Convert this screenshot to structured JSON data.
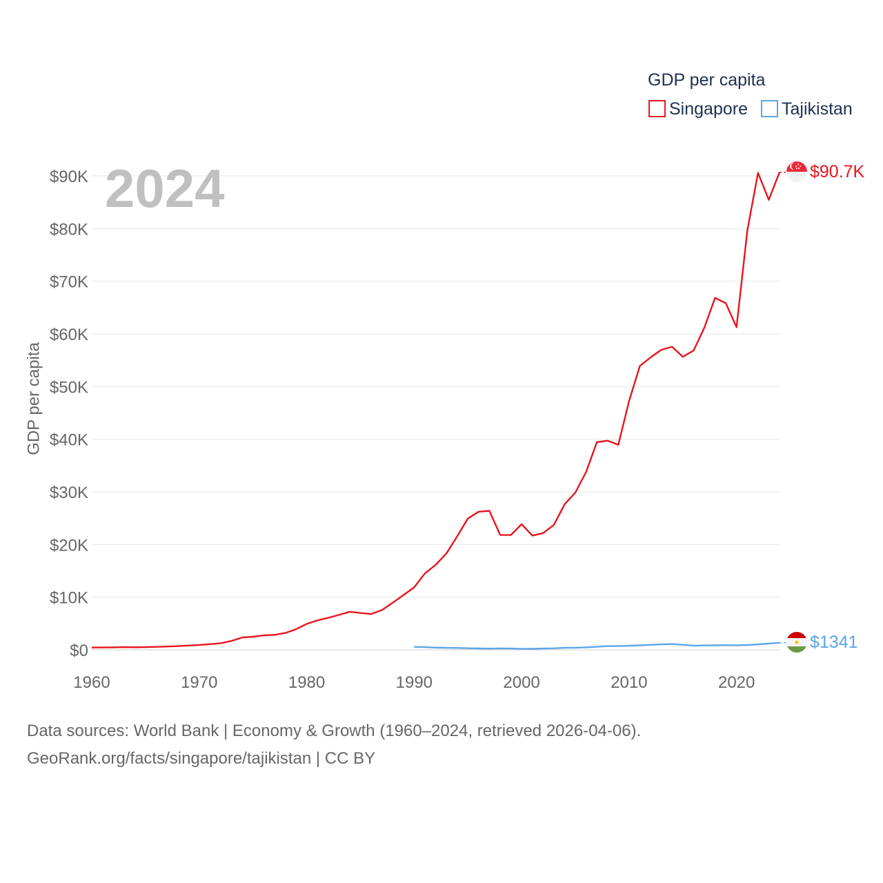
{
  "chart_data": {
    "type": "line",
    "title": "GDP per capita",
    "legend_title": "GDP per capita",
    "ylabel": "GDP per capita",
    "xlabel": "",
    "xlim": [
      1960,
      2024
    ],
    "ylim": [
      0,
      90000
    ],
    "x_ticks": [
      1960,
      1970,
      1980,
      1990,
      2000,
      2010,
      2020
    ],
    "x_tick_labels": [
      "1960",
      "1970",
      "1980",
      "1990",
      "2000",
      "2010",
      "2020"
    ],
    "y_ticks": [
      0,
      10000,
      20000,
      30000,
      40000,
      50000,
      60000,
      70000,
      80000,
      90000
    ],
    "y_tick_labels": [
      "$0",
      "$10K",
      "$20K",
      "$30K",
      "$40K",
      "$50K",
      "$60K",
      "$70K",
      "$80K",
      "$90K"
    ],
    "year_label": "2024",
    "grid": true,
    "legend_position": "top-right",
    "series": [
      {
        "name": "Singapore",
        "color": "#e8141c",
        "end_label": "$90.7K",
        "flag": "singapore-flag",
        "x": [
          1960,
          1961,
          1962,
          1963,
          1964,
          1965,
          1966,
          1967,
          1968,
          1969,
          1970,
          1971,
          1972,
          1973,
          1974,
          1975,
          1976,
          1977,
          1978,
          1979,
          1980,
          1981,
          1982,
          1983,
          1984,
          1985,
          1986,
          1987,
          1988,
          1989,
          1990,
          1991,
          1992,
          1993,
          1994,
          1995,
          1996,
          1997,
          1998,
          1999,
          2000,
          2001,
          2002,
          2003,
          2004,
          2005,
          2006,
          2007,
          2008,
          2009,
          2010,
          2011,
          2012,
          2013,
          2014,
          2015,
          2016,
          2017,
          2018,
          2019,
          2020,
          2021,
          2022,
          2023,
          2024
        ],
        "values": [
          428,
          449,
          472,
          511,
          485,
          516,
          566,
          626,
          708,
          812,
          925,
          1071,
          1264,
          1685,
          2341,
          2490,
          2746,
          2846,
          3194,
          3901,
          4928,
          5596,
          6078,
          6632,
          7235,
          6990,
          6800,
          7540,
          8940,
          10400,
          11860,
          14500,
          16140,
          18300,
          21550,
          24930,
          26230,
          26400,
          21820,
          21800,
          23850,
          21700,
          22160,
          23730,
          27610,
          29870,
          33770,
          39430,
          39720,
          38930,
          47240,
          53890,
          55550,
          56970,
          57560,
          55650,
          56830,
          61180,
          66840,
          65830,
          61270,
          79600,
          90570,
          85450,
          90690
        ]
      },
      {
        "name": "Tajikistan",
        "color": "#5aa5e8",
        "end_label": "$1341",
        "flag": "tajikistan-flag",
        "x": [
          1990,
          1991,
          1992,
          1993,
          1994,
          1995,
          1996,
          1997,
          1998,
          1999,
          2000,
          2001,
          2002,
          2003,
          2004,
          2005,
          2006,
          2007,
          2008,
          2009,
          2010,
          2011,
          2012,
          2013,
          2014,
          2015,
          2016,
          2017,
          2018,
          2019,
          2020,
          2021,
          2022,
          2023,
          2024
        ],
        "values": [
          560,
          510,
          420,
          380,
          360,
          300,
          260,
          240,
          280,
          250,
          180,
          200,
          250,
          290,
          380,
          410,
          470,
          580,
          710,
          710,
          770,
          850,
          950,
          1040,
          1100,
          960,
          800,
          840,
          850,
          890,
          860,
          900,
          1040,
          1190,
          1341
        ]
      }
    ]
  },
  "footer": {
    "line1": "Data sources: World Bank | Economy & Growth (1960–2024, retrieved 2026-04-06).",
    "line2": "GeoRank.org/facts/singapore/tajikistan | CC BY"
  }
}
